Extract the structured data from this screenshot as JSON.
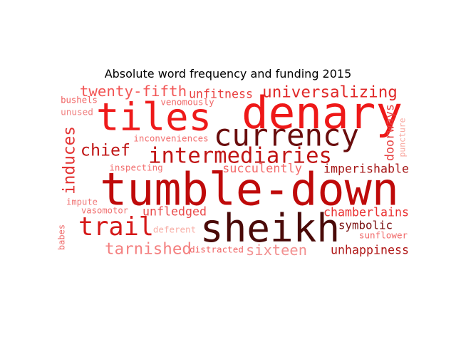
{
  "chart_data": {
    "type": "wordcloud",
    "title": "Absolute word frequency and funding 2015",
    "color_scheme": "reds",
    "words": [
      {
        "text": "tumble-down",
        "weight": 100,
        "color": "#bf0a0a"
      },
      {
        "text": "sheikh",
        "weight": 82,
        "color": "#4a0a08"
      },
      {
        "text": "tiles",
        "weight": 68,
        "color": "#ee1a1a"
      },
      {
        "text": "denary",
        "weight": 66,
        "color": "#ee1818"
      },
      {
        "text": "currency",
        "weight": 55,
        "color": "#6a0d0d"
      },
      {
        "text": "trail",
        "weight": 48,
        "color": "#d51818"
      },
      {
        "text": "intermediaries",
        "weight": 40,
        "color": "#c11414"
      },
      {
        "text": "universalizing",
        "weight": 34,
        "color": "#e02828"
      },
      {
        "text": "induces",
        "weight": 33,
        "color": "#e33434"
      },
      {
        "text": "chief",
        "weight": 33,
        "color": "#c01515"
      },
      {
        "text": "twenty-fifth",
        "weight": 31,
        "color": "#f25555"
      },
      {
        "text": "tarnished",
        "weight": 31,
        "color": "#f48080"
      },
      {
        "text": "doorways",
        "weight": 28,
        "color": "#e64040"
      },
      {
        "text": "unfitness",
        "weight": 27,
        "color": "#e84040"
      },
      {
        "text": "succulently",
        "weight": 27,
        "color": "#f46a6a"
      },
      {
        "text": "unfledged",
        "weight": 26,
        "color": "#ea4a4a"
      },
      {
        "text": "sixteen",
        "weight": 26,
        "color": "#f29090"
      },
      {
        "text": "imperishable",
        "weight": 25,
        "color": "#a51616"
      },
      {
        "text": "chamberlains",
        "weight": 25,
        "color": "#ea3030"
      },
      {
        "text": "symbolic",
        "weight": 25,
        "color": "#7a1010"
      },
      {
        "text": "unhappiness",
        "weight": 25,
        "color": "#b01818"
      },
      {
        "text": "inconveniences",
        "weight": 18,
        "color": "#f27070"
      },
      {
        "text": "inspecting",
        "weight": 18,
        "color": "#f27070"
      },
      {
        "text": "venomously",
        "weight": 18,
        "color": "#f06868"
      },
      {
        "text": "bushels",
        "weight": 17,
        "color": "#f06060"
      },
      {
        "text": "unused",
        "weight": 17,
        "color": "#f08080"
      },
      {
        "text": "impute",
        "weight": 17,
        "color": "#f07878"
      },
      {
        "text": "vasomotor",
        "weight": 17,
        "color": "#f07070"
      },
      {
        "text": "deferent",
        "weight": 17,
        "color": "#f8b0a8"
      },
      {
        "text": "distracted",
        "weight": 17,
        "color": "#f06868"
      },
      {
        "text": "sunflower",
        "weight": 17,
        "color": "#f06868"
      },
      {
        "text": "puncture",
        "weight": 15,
        "color": "#f8a8a0"
      },
      {
        "text": "babes",
        "weight": 15,
        "color": "#f07070"
      }
    ]
  }
}
